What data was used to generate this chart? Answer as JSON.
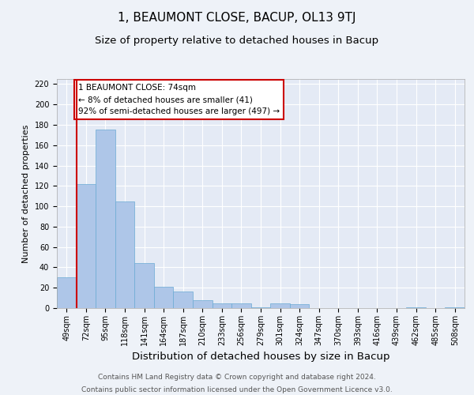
{
  "title": "1, BEAUMONT CLOSE, BACUP, OL13 9TJ",
  "subtitle": "Size of property relative to detached houses in Bacup",
  "xlabel": "Distribution of detached houses by size in Bacup",
  "ylabel": "Number of detached properties",
  "bin_labels": [
    "49sqm",
    "72sqm",
    "95sqm",
    "118sqm",
    "141sqm",
    "164sqm",
    "187sqm",
    "210sqm",
    "233sqm",
    "256sqm",
    "279sqm",
    "301sqm",
    "324sqm",
    "347sqm",
    "370sqm",
    "393sqm",
    "416sqm",
    "439sqm",
    "462sqm",
    "485sqm",
    "508sqm"
  ],
  "bar_values": [
    30,
    122,
    175,
    105,
    44,
    21,
    16,
    8,
    5,
    5,
    1,
    5,
    4,
    0,
    0,
    0,
    0,
    0,
    1,
    0,
    1
  ],
  "bar_color": "#aec6e8",
  "bar_edge_color": "#6aaad4",
  "vline_color": "#cc0000",
  "annotation_text": "1 BEAUMONT CLOSE: 74sqm\n← 8% of detached houses are smaller (41)\n92% of semi-detached houses are larger (497) →",
  "annotation_box_color": "#cc0000",
  "ylim": [
    0,
    225
  ],
  "yticks": [
    0,
    20,
    40,
    60,
    80,
    100,
    120,
    140,
    160,
    180,
    200,
    220
  ],
  "footnote1": "Contains HM Land Registry data © Crown copyright and database right 2024.",
  "footnote2": "Contains public sector information licensed under the Open Government Licence v3.0.",
  "bg_color": "#eef2f8",
  "plot_bg_color": "#e4eaf5",
  "grid_color": "#ffffff",
  "title_fontsize": 11,
  "subtitle_fontsize": 9.5,
  "xlabel_fontsize": 9.5,
  "ylabel_fontsize": 8,
  "tick_fontsize": 7,
  "annotation_fontsize": 7.5,
  "footnote_fontsize": 6.5
}
